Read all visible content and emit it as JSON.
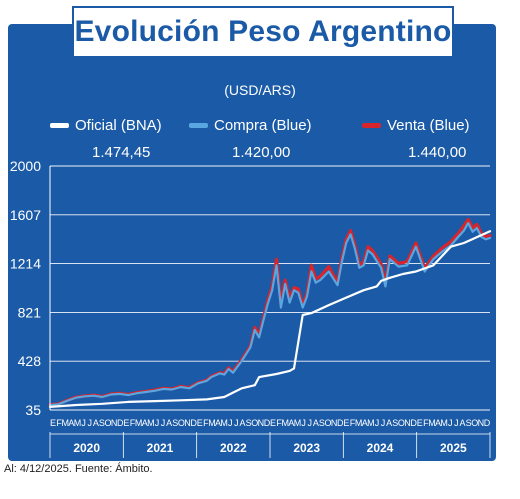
{
  "title": "Evolución Peso Argentino",
  "subtitle": "(USD/ARS)",
  "legend": [
    {
      "label": "Oficial (BNA)",
      "color": "#ffffff",
      "value": "1.474,45"
    },
    {
      "label": "Compra (Blue)",
      "color": "#5aa6e0",
      "value": "1.420,00"
    },
    {
      "label": "Venta (Blue)",
      "color": "#d6252c",
      "value": "1.440,00"
    }
  ],
  "footnote": "Al: 4/12/2025. Fuente: Ámbito.",
  "colors": {
    "background": "#1a5aa6",
    "grid": "#ffffff",
    "oficial": "#ffffff",
    "compra": "#5aa6e0",
    "venta": "#d6252c"
  },
  "chart_data": {
    "type": "line",
    "y_ticks": [
      35,
      428,
      821,
      1214,
      1607,
      2000
    ],
    "y_tick_labels": [
      "35",
      "428",
      "821",
      "1214",
      "1607",
      "2000"
    ],
    "ylim": [
      35,
      2000
    ],
    "month_labels": [
      "E",
      "F",
      "M",
      "A",
      "M",
      "J",
      "J",
      "A",
      "S",
      "O",
      "N",
      "D"
    ],
    "years": [
      "2020",
      "2021",
      "2022",
      "2023",
      "2024",
      "2025"
    ],
    "grid": true,
    "legend_position": "top",
    "series": [
      {
        "name": "Oficial (BNA)",
        "key": "oficial",
        "t": [
          0,
          6,
          12,
          18,
          24,
          30,
          36,
          40,
          42,
          44,
          47,
          48,
          52,
          55,
          56,
          58,
          60,
          64,
          68,
          72,
          75,
          76,
          78,
          81,
          84,
          88,
          92,
          95,
          101
        ],
        "values": [
          60,
          75,
          85,
          100,
          107,
          113,
          120,
          140,
          175,
          210,
          235,
          300,
          325,
          350,
          370,
          800,
          815,
          880,
          940,
          1000,
          1030,
          1075,
          1100,
          1130,
          1150,
          1200,
          1350,
          1380,
          1474
        ]
      },
      {
        "name": "Compra (Blue)",
        "key": "compra",
        "t": [
          0,
          2,
          4,
          6,
          8,
          10,
          12,
          14,
          16,
          18,
          20,
          22,
          24,
          26,
          28,
          30,
          32,
          34,
          36,
          37,
          39,
          40,
          41,
          42,
          44,
          46,
          47,
          48,
          49,
          50,
          51,
          52,
          53,
          54,
          55,
          56,
          57,
          58,
          59,
          60,
          61,
          62,
          64,
          66,
          67,
          68,
          69,
          70,
          71,
          72,
          73,
          74,
          76,
          77,
          78,
          80,
          82,
          84,
          86,
          88,
          90,
          92,
          93,
          94,
          95,
          96,
          97,
          98,
          99,
          100,
          101
        ],
        "values": [
          75,
          82,
          110,
          135,
          145,
          150,
          140,
          160,
          165,
          155,
          170,
          180,
          190,
          205,
          200,
          220,
          210,
          250,
          270,
          300,
          330,
          320,
          365,
          335,
          430,
          540,
          680,
          620,
          760,
          890,
          1000,
          1200,
          860,
          1050,
          900,
          1000,
          980,
          860,
          950,
          1150,
          1060,
          1080,
          1150,
          1040,
          1230,
          1380,
          1450,
          1330,
          1180,
          1200,
          1320,
          1290,
          1180,
          1030,
          1250,
          1190,
          1200,
          1350,
          1150,
          1250,
          1310,
          1360,
          1400,
          1440,
          1480,
          1540,
          1470,
          1500,
          1430,
          1410,
          1420
        ]
      },
      {
        "name": "Venta (Blue)",
        "key": "venta",
        "t": [
          0,
          2,
          4,
          6,
          8,
          10,
          12,
          14,
          16,
          18,
          20,
          22,
          24,
          26,
          28,
          30,
          32,
          34,
          36,
          37,
          39,
          40,
          41,
          42,
          44,
          46,
          47,
          48,
          49,
          50,
          51,
          52,
          53,
          54,
          55,
          56,
          57,
          58,
          59,
          60,
          61,
          62,
          64,
          66,
          67,
          68,
          69,
          70,
          71,
          72,
          73,
          74,
          76,
          77,
          78,
          80,
          82,
          84,
          86,
          88,
          90,
          92,
          93,
          94,
          95,
          96,
          97,
          98,
          99,
          100,
          101
        ],
        "values": [
          78,
          85,
          114,
          138,
          148,
          154,
          144,
          164,
          170,
          160,
          175,
          185,
          195,
          210,
          205,
          225,
          215,
          255,
          275,
          305,
          335,
          330,
          375,
          345,
          440,
          550,
          700,
          640,
          780,
          920,
          1030,
          1250,
          890,
          1080,
          930,
          1020,
          1010,
          880,
          970,
          1200,
          1090,
          1110,
          1190,
          1060,
          1260,
          1410,
          1480,
          1360,
          1200,
          1230,
          1350,
          1320,
          1210,
          1060,
          1275,
          1215,
          1230,
          1380,
          1175,
          1275,
          1340,
          1390,
          1430,
          1470,
          1520,
          1570,
          1500,
          1530,
          1460,
          1430,
          1440
        ]
      }
    ]
  }
}
